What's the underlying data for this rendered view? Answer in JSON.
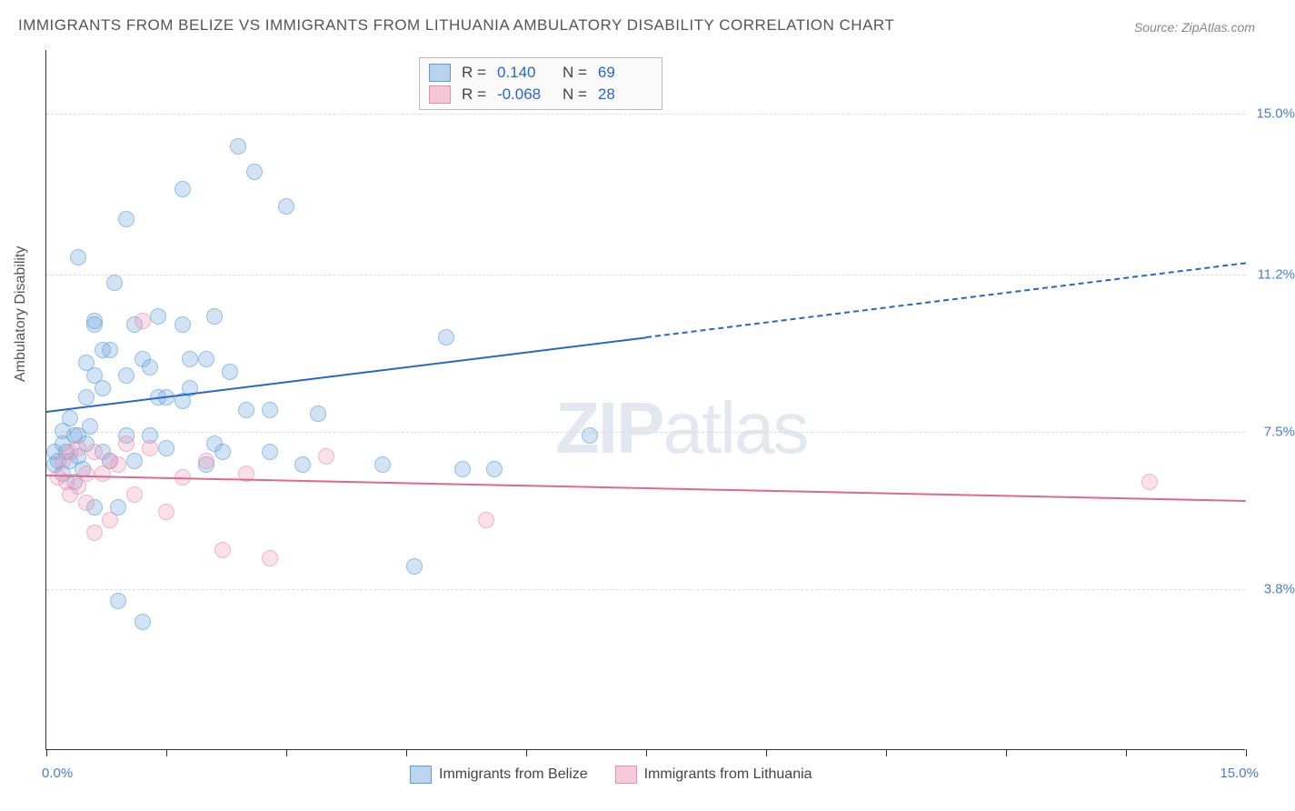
{
  "title": "IMMIGRANTS FROM BELIZE VS IMMIGRANTS FROM LITHUANIA AMBULATORY DISABILITY CORRELATION CHART",
  "source": "Source: ZipAtlas.com",
  "ylabel": "Ambulatory Disability",
  "watermark_prefix": "ZIP",
  "watermark_suffix": "atlas",
  "chart": {
    "type": "scatter",
    "background_color": "#ffffff",
    "grid_color": "#dddddd",
    "axis_color": "#333333",
    "xlim": [
      0,
      15
    ],
    "ylim": [
      0,
      16.5
    ],
    "ytick_values": [
      3.8,
      7.5,
      11.2,
      15.0
    ],
    "ytick_labels": [
      "3.8%",
      "7.5%",
      "11.2%",
      "15.0%"
    ],
    "xtick_values": [
      0,
      1.5,
      3.0,
      4.5,
      6.0,
      7.5,
      9.0,
      10.5,
      12.0,
      13.5,
      15.0
    ],
    "xaxis_labels": {
      "left": "0.0%",
      "right": "15.0%"
    },
    "series": [
      {
        "name": "Immigrants from Belize",
        "color_fill": "rgba(120,170,225,0.5)",
        "color_stroke": "#5a9fd4",
        "color_hex": "#6fa8dc",
        "R": "0.140",
        "N": "69",
        "trend": {
          "x1": 0,
          "y1": 8.0,
          "x2": 15,
          "y2": 11.5,
          "x_solid_end": 7.5,
          "color": "#2668c6"
        },
        "points": [
          [
            0.1,
            6.7
          ],
          [
            0.1,
            7.0
          ],
          [
            0.15,
            6.8
          ],
          [
            0.2,
            7.2
          ],
          [
            0.2,
            6.5
          ],
          [
            0.2,
            7.5
          ],
          [
            0.25,
            7.0
          ],
          [
            0.3,
            6.8
          ],
          [
            0.3,
            7.8
          ],
          [
            0.35,
            6.3
          ],
          [
            0.35,
            7.4
          ],
          [
            0.4,
            6.9
          ],
          [
            0.4,
            7.4
          ],
          [
            0.4,
            11.6
          ],
          [
            0.45,
            6.6
          ],
          [
            0.5,
            7.2
          ],
          [
            0.5,
            8.3
          ],
          [
            0.5,
            9.1
          ],
          [
            0.55,
            7.6
          ],
          [
            0.6,
            5.7
          ],
          [
            0.6,
            10.0
          ],
          [
            0.6,
            10.1
          ],
          [
            0.7,
            7.0
          ],
          [
            0.7,
            8.5
          ],
          [
            0.8,
            6.8
          ],
          [
            0.8,
            9.4
          ],
          [
            0.85,
            11.0
          ],
          [
            0.9,
            3.5
          ],
          [
            0.9,
            5.7
          ],
          [
            1.0,
            7.4
          ],
          [
            1.0,
            8.8
          ],
          [
            1.0,
            12.5
          ],
          [
            1.1,
            6.8
          ],
          [
            1.1,
            10.0
          ],
          [
            1.2,
            3.0
          ],
          [
            1.2,
            9.2
          ],
          [
            1.3,
            7.4
          ],
          [
            1.3,
            9.0
          ],
          [
            1.4,
            8.3
          ],
          [
            1.4,
            10.2
          ],
          [
            1.5,
            7.1
          ],
          [
            1.5,
            8.3
          ],
          [
            1.7,
            8.2
          ],
          [
            1.7,
            10.0
          ],
          [
            1.7,
            13.2
          ],
          [
            1.8,
            8.5
          ],
          [
            1.8,
            9.2
          ],
          [
            2.0,
            6.7
          ],
          [
            2.0,
            9.2
          ],
          [
            2.1,
            7.2
          ],
          [
            2.1,
            10.2
          ],
          [
            2.2,
            7.0
          ],
          [
            2.3,
            8.9
          ],
          [
            2.4,
            14.2
          ],
          [
            2.5,
            8.0
          ],
          [
            2.6,
            13.6
          ],
          [
            2.8,
            7.0
          ],
          [
            2.8,
            8.0
          ],
          [
            3.0,
            12.8
          ],
          [
            3.2,
            6.7
          ],
          [
            3.4,
            7.9
          ],
          [
            4.2,
            6.7
          ],
          [
            4.6,
            4.3
          ],
          [
            5.0,
            9.7
          ],
          [
            5.2,
            6.6
          ],
          [
            5.6,
            6.6
          ],
          [
            6.8,
            7.4
          ],
          [
            0.6,
            8.8
          ],
          [
            0.7,
            9.4
          ]
        ]
      },
      {
        "name": "Immigrants from Lithuania",
        "color_fill": "rgba(240,150,180,0.45)",
        "color_stroke": "#e88fb0",
        "color_hex": "#f4a6c0",
        "R": "-0.068",
        "N": "28",
        "trend": {
          "x1": 0,
          "y1": 6.5,
          "x2": 15,
          "y2": 5.9,
          "x_solid_end": 15,
          "color": "#e06890"
        },
        "points": [
          [
            0.15,
            6.4
          ],
          [
            0.2,
            6.8
          ],
          [
            0.25,
            6.3
          ],
          [
            0.3,
            6.0
          ],
          [
            0.3,
            7.0
          ],
          [
            0.4,
            6.2
          ],
          [
            0.4,
            7.1
          ],
          [
            0.5,
            6.5
          ],
          [
            0.5,
            5.8
          ],
          [
            0.6,
            7.0
          ],
          [
            0.6,
            5.1
          ],
          [
            0.7,
            6.5
          ],
          [
            0.8,
            6.8
          ],
          [
            0.8,
            5.4
          ],
          [
            0.9,
            6.7
          ],
          [
            1.0,
            7.2
          ],
          [
            1.1,
            6.0
          ],
          [
            1.2,
            10.1
          ],
          [
            1.3,
            7.1
          ],
          [
            1.5,
            5.6
          ],
          [
            1.7,
            6.4
          ],
          [
            2.0,
            6.8
          ],
          [
            2.2,
            4.7
          ],
          [
            2.5,
            6.5
          ],
          [
            2.8,
            4.5
          ],
          [
            3.5,
            6.9
          ],
          [
            5.5,
            5.4
          ],
          [
            13.8,
            6.3
          ]
        ]
      }
    ]
  }
}
